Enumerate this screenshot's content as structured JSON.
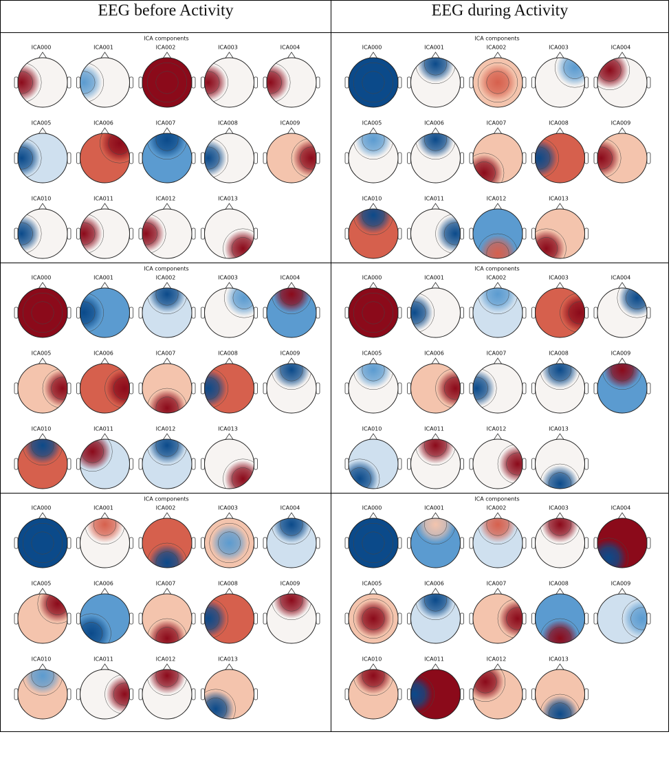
{
  "header": {
    "columns": [
      "EEG before Activity",
      "EEG during Activity"
    ]
  },
  "panels": [
    {
      "title": "ICA components",
      "labels": [
        "ICA000",
        "ICA001",
        "ICA002",
        "ICA003",
        "ICA004",
        "ICA005",
        "ICA006",
        "ICA007",
        "ICA008",
        "ICA009",
        "ICA010",
        "ICA011",
        "ICA012",
        "ICA013"
      ]
    },
    {
      "title": "ICA components",
      "labels": [
        "ICA000",
        "ICA001",
        "ICA002",
        "ICA003",
        "ICA004",
        "ICA005",
        "ICA006",
        "ICA007",
        "ICA008",
        "ICA009",
        "ICA010",
        "ICA011",
        "ICA012",
        "ICA013"
      ]
    },
    {
      "title": "ICA components",
      "labels": [
        "ICA000",
        "ICA001",
        "ICA002",
        "ICA003",
        "ICA004",
        "ICA005",
        "ICA006",
        "ICA007",
        "ICA008",
        "ICA009",
        "ICA010",
        "ICA011",
        "ICA012",
        "ICA013"
      ]
    },
    {
      "title": "ICA components",
      "labels": [
        "ICA000",
        "ICA001",
        "ICA002",
        "ICA003",
        "ICA004",
        "ICA005",
        "ICA006",
        "ICA007",
        "ICA008",
        "ICA009",
        "ICA010",
        "ICA011",
        "ICA012",
        "ICA013"
      ]
    },
    {
      "title": "ICA components",
      "labels": [
        "ICA000",
        "ICA001",
        "ICA002",
        "ICA003",
        "ICA004",
        "ICA005",
        "ICA006",
        "ICA007",
        "ICA008",
        "ICA009",
        "ICA010",
        "ICA011",
        "ICA012",
        "ICA013"
      ]
    },
    {
      "title": "ICA components",
      "labels": [
        "ICA000",
        "ICA001",
        "ICA002",
        "ICA003",
        "ICA004",
        "ICA005",
        "ICA006",
        "ICA007",
        "ICA008",
        "ICA009",
        "ICA010",
        "ICA011",
        "ICA012",
        "ICA013"
      ]
    }
  ]
}
